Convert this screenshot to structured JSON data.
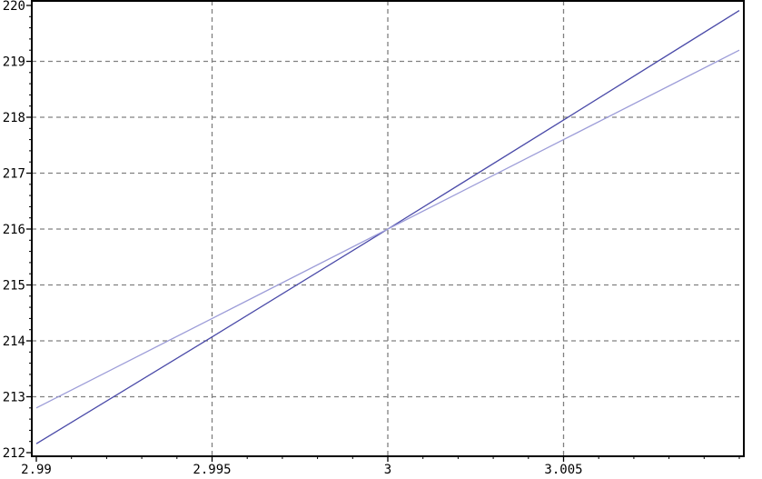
{
  "chart_data": {
    "type": "line",
    "title": "",
    "xlabel": "",
    "ylabel": "",
    "xlim": [
      2.99,
      3.01
    ],
    "ylim": [
      212,
      220
    ],
    "grid": true,
    "x_ticks": [
      2.99,
      2.995,
      3,
      3.005
    ],
    "x_tick_labels": [
      "2.99",
      "2.995",
      "3",
      "3.005"
    ],
    "y_ticks": [
      212,
      213,
      214,
      215,
      216,
      217,
      218,
      219,
      220
    ],
    "y_tick_labels": [
      "212",
      "213",
      "214",
      "215",
      "216",
      "217",
      "218",
      "219",
      "220"
    ],
    "series": [
      {
        "color": "#4a4aa8",
        "x": [
          2.99,
          2.995,
          3.0,
          3.005,
          3.01
        ],
        "y": [
          212.16,
          214.07,
          216.0,
          217.95,
          219.91
        ]
      },
      {
        "color": "#9c9cd8",
        "x": [
          2.99,
          2.995,
          3.0,
          3.005,
          3.01
        ],
        "y": [
          212.8,
          214.4,
          216.0,
          217.6,
          219.2
        ]
      }
    ],
    "grid_color": "#808080"
  }
}
